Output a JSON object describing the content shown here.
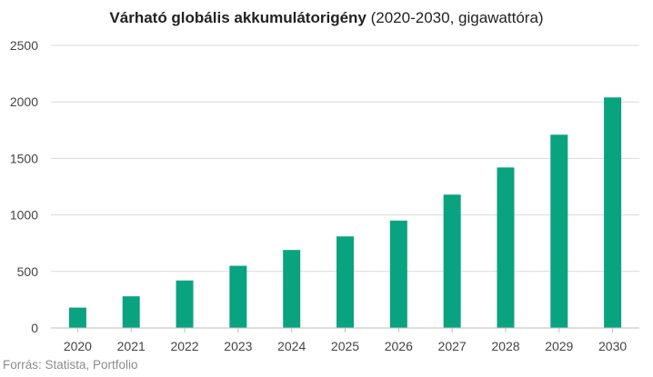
{
  "title": {
    "bold": "Várható globális akkumulátorigény",
    "regular": "(2020-2030, gigawattóra)"
  },
  "source": "Forrás: Statista, Portfolio",
  "colors": {
    "bar": "#0aa37f",
    "grid": "#d9d9d9",
    "axis": "#bdbdbd"
  },
  "chart_data": {
    "type": "bar",
    "title": "Várható globális akkumulátorigény (2020-2030, gigawattóra)",
    "categories": [
      "2020",
      "2021",
      "2022",
      "2023",
      "2024",
      "2025",
      "2026",
      "2027",
      "2028",
      "2029",
      "2030"
    ],
    "values": [
      180,
      280,
      420,
      550,
      690,
      810,
      950,
      1180,
      1420,
      1710,
      2040
    ],
    "ylim": [
      0,
      2500
    ],
    "yticks": [
      0,
      500,
      1000,
      1500,
      2000,
      2500
    ],
    "xlabel": "",
    "ylabel": "",
    "grid": true,
    "legend": "none"
  }
}
